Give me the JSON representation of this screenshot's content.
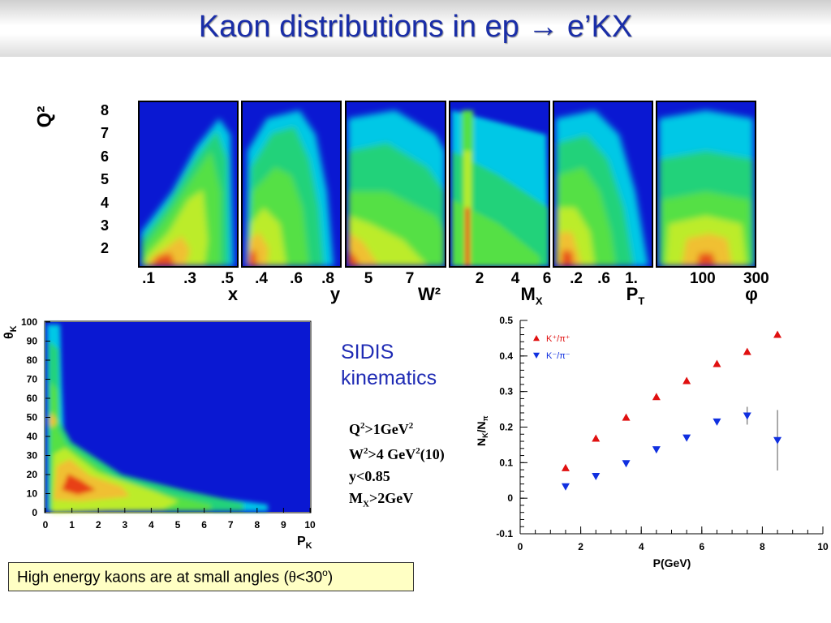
{
  "title": "Kaon distributions in ep → e’KX",
  "top_strip": {
    "y_axis_label": "Q²",
    "y_ticks": [
      "8",
      "7",
      "6",
      "5",
      "4",
      "3",
      "2"
    ],
    "panels": [
      {
        "name": "x",
        "tick_labels": [
          ".1",
          ".3",
          ".5"
        ],
        "label": "x",
        "label_sub": ""
      },
      {
        "name": "y",
        "tick_labels": [
          ".4",
          ".6",
          ".8"
        ],
        "label": "y",
        "label_sub": ""
      },
      {
        "name": "W2",
        "tick_labels": [
          "5",
          "7"
        ],
        "label": "W²",
        "label_sub": ""
      },
      {
        "name": "Mx",
        "tick_labels": [
          "2",
          "4",
          "6"
        ],
        "label": "M",
        "label_sub": "X"
      },
      {
        "name": "PT",
        "tick_labels": [
          ".2",
          ".6",
          "1."
        ],
        "label": "P",
        "label_sub": "T"
      },
      {
        "name": "phi",
        "tick_labels": [
          "100",
          "300"
        ],
        "label": "φ",
        "label_sub": ""
      }
    ]
  },
  "theta_chart": {
    "y_axis_label": "θ",
    "y_axis_label_sub": "K",
    "x_axis_label": "P",
    "x_axis_label_sub": "K",
    "x_ticks": [
      "0",
      "1",
      "2",
      "3",
      "4",
      "5",
      "6",
      "7",
      "8",
      "9",
      "10"
    ],
    "y_ticks": [
      "0",
      "10",
      "20",
      "30",
      "40",
      "50",
      "60",
      "70",
      "80",
      "90",
      "100"
    ]
  },
  "sidis": {
    "heading_line1": "SIDIS",
    "heading_line2": "kinematics",
    "cut1_a": "Q",
    "cut1_sup": "2",
    "cut1_b": ">1GeV",
    "cut1_sup2": "2",
    "cut2_a": "W",
    "cut2_sup": "2",
    "cut2_b": ">4 GeV",
    "cut2_sup2": "2",
    "cut2_c": "(10)",
    "cut3": "y<0.85",
    "cut4_a": "M",
    "cut4_sub": "X",
    "cut4_b": ">2GeV"
  },
  "caption": {
    "text_a": "High energy kaons are at small angles (",
    "theta": "θ",
    "text_b": "<30",
    "sup": "o",
    "text_c": ")"
  },
  "colors": {
    "title": "#1a2ea8",
    "kplus": "#e01010",
    "kminus": "#1030e0",
    "heat_bg": "#0a18d2"
  },
  "chart_data": [
    {
      "type": "heatmap",
      "title": "",
      "xlabel": "P_K",
      "ylabel": "θ_K",
      "xlim": [
        0,
        10
      ],
      "ylim": [
        0,
        100
      ],
      "x_ticks": [
        0,
        1,
        2,
        3,
        4,
        5,
        6,
        7,
        8,
        9,
        10
      ],
      "y_ticks": [
        0,
        10,
        20,
        30,
        40,
        50,
        60,
        70,
        80,
        90,
        100
      ],
      "grid": false
    },
    {
      "type": "scatter",
      "title": "",
      "xlabel": "P(GeV)",
      "ylabel": "N_K/N_π",
      "xlim": [
        0,
        10
      ],
      "ylim": [
        -0.1,
        0.5
      ],
      "x_ticks": [
        0,
        2,
        4,
        6,
        8,
        10
      ],
      "y_ticks": [
        -0.1,
        0,
        0.1,
        0.2,
        0.3,
        0.4,
        0.5
      ],
      "legend": "top-left",
      "grid": false,
      "series": [
        {
          "name": "K⁺/π⁺",
          "color": "#e01010",
          "marker": "triangle-up",
          "x": [
            1.5,
            2.5,
            3.5,
            4.5,
            5.5,
            6.5,
            7.5,
            8.5
          ],
          "y": [
            0.085,
            0.168,
            0.227,
            0.285,
            0.33,
            0.378,
            0.412,
            0.46
          ]
        },
        {
          "name": "K⁻/π⁻",
          "color": "#1030e0",
          "marker": "triangle-down",
          "x": [
            1.5,
            2.5,
            3.5,
            4.5,
            5.5,
            6.5,
            7.5,
            8.5
          ],
          "y": [
            0.033,
            0.062,
            0.098,
            0.137,
            0.17,
            0.215,
            0.232,
            0.163
          ],
          "err": [
            0,
            0,
            0,
            0,
            0,
            0,
            0.025,
            0.085
          ]
        }
      ]
    }
  ]
}
